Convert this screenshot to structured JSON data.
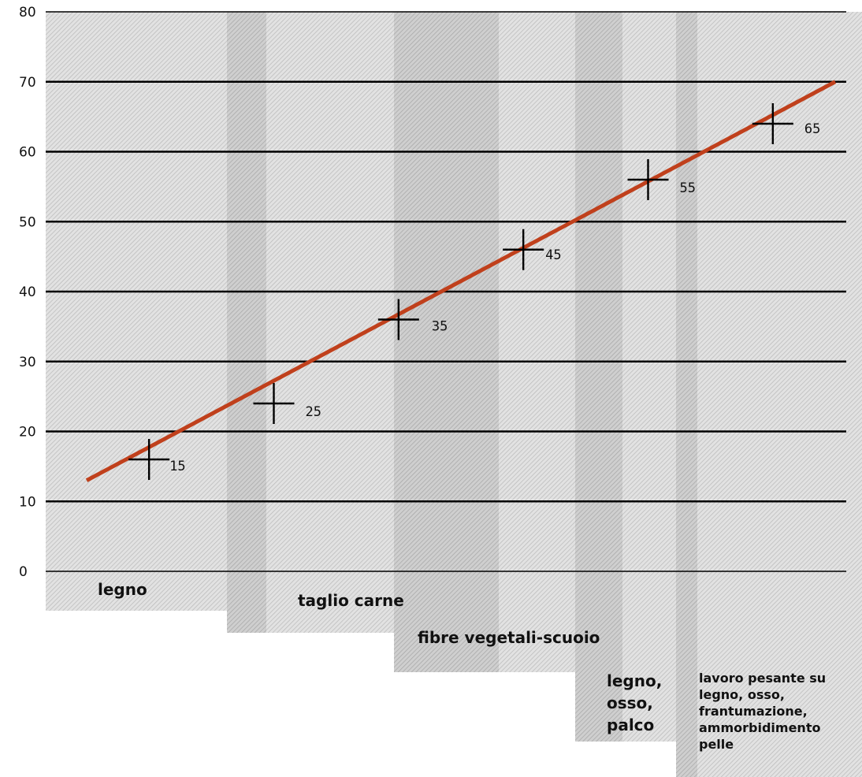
{
  "chart_data": {
    "type": "line",
    "ylim": [
      0,
      80
    ],
    "yticks": [
      "0",
      "10",
      "20",
      "30",
      "40",
      "50",
      "60",
      "70",
      "80"
    ],
    "grid": true,
    "trend_line": {
      "start": [
        0.5,
        13
      ],
      "end": [
        6.5,
        70
      ],
      "color": "#c0401c"
    },
    "points": [
      {
        "x": 1,
        "y": 16,
        "label": "15"
      },
      {
        "x": 2,
        "y": 24,
        "label": "25"
      },
      {
        "x": 3,
        "y": 36,
        "label": "35"
      },
      {
        "x": 4,
        "y": 46,
        "label": "45"
      },
      {
        "x": 5,
        "y": 56,
        "label": "55"
      },
      {
        "x": 6,
        "y": 64,
        "label": "65"
      }
    ],
    "bands": [
      {
        "text": "legno"
      },
      {
        "text": "taglio carne"
      },
      {
        "text": "fibre vegetali-scuoio"
      },
      {
        "text": "legno,\nosso,\npalco"
      },
      {
        "text": "lavoro pesante su\nlegno, osso,\nfrantumazione,\nammorbidimento\npelle"
      }
    ]
  }
}
